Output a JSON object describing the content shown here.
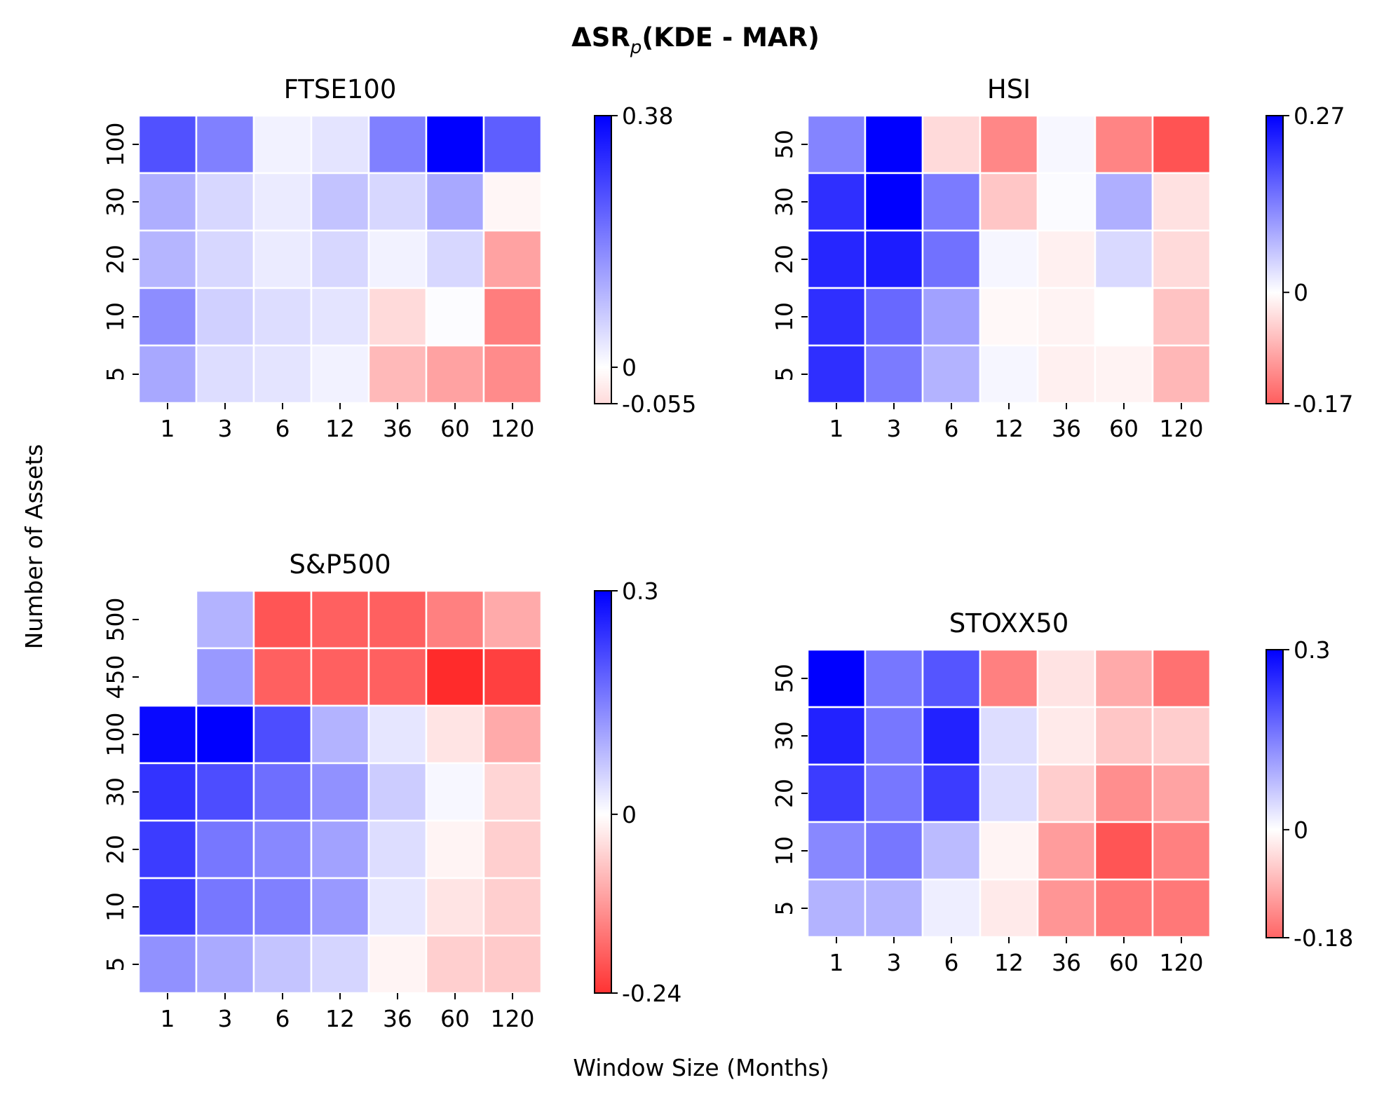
{
  "figure": {
    "title": "ΔSR",
    "title_sub": "p",
    "title_rest": "(KDE - MAR)",
    "xlabel": "Window Size (Months)",
    "ylabel": "Number of Assets"
  },
  "colors": {
    "positive": "#0000ff",
    "zero": "#ffffff",
    "negative": "#ff0000",
    "missing": "#ffffff"
  },
  "chart_data": [
    {
      "type": "heatmap",
      "title": "FTSE100",
      "x_categories": [
        "1",
        "3",
        "6",
        "12",
        "36",
        "60",
        "120"
      ],
      "y_categories": [
        "100",
        "30",
        "20",
        "10",
        "5"
      ],
      "values": [
        [
          0.26,
          0.19,
          0.02,
          0.04,
          0.19,
          0.38,
          0.24
        ],
        [
          0.12,
          0.06,
          0.03,
          0.09,
          0.06,
          0.13,
          -0.002
        ],
        [
          0.11,
          0.06,
          0.03,
          0.06,
          0.02,
          0.06,
          -0.02
        ],
        [
          0.17,
          0.07,
          0.05,
          0.04,
          -0.008,
          0.004,
          -0.028
        ],
        [
          0.13,
          0.05,
          0.04,
          0.02,
          -0.015,
          -0.02,
          -0.025
        ]
      ],
      "colorbar": {
        "vmin": -0.055,
        "vmax": 0.38,
        "ticks": [
          0.38,
          0,
          -0.055
        ],
        "tick_labels": [
          "0.38",
          "0",
          "-0.055"
        ]
      }
    },
    {
      "type": "heatmap",
      "title": "HSI",
      "x_categories": [
        "1",
        "3",
        "6",
        "12",
        "36",
        "60",
        "120"
      ],
      "y_categories": [
        "50",
        "30",
        "20",
        "10",
        "5"
      ],
      "values": [
        [
          0.13,
          0.27,
          -0.025,
          -0.08,
          0.008,
          -0.082,
          -0.115
        ],
        [
          0.22,
          0.27,
          0.14,
          -0.038,
          0.004,
          0.085,
          -0.02
        ],
        [
          0.23,
          0.24,
          0.15,
          0.01,
          -0.01,
          0.04,
          -0.025
        ],
        [
          0.22,
          0.16,
          0.1,
          -0.005,
          -0.008,
          0.0,
          -0.04
        ],
        [
          0.22,
          0.14,
          0.08,
          0.01,
          -0.01,
          -0.008,
          -0.048
        ]
      ],
      "colorbar": {
        "vmin": -0.17,
        "vmax": 0.27,
        "ticks": [
          0.27,
          0,
          -0.17
        ],
        "tick_labels": [
          "0.27",
          "0",
          "-0.17"
        ]
      }
    },
    {
      "type": "heatmap",
      "title": "S&P500",
      "x_categories": [
        "1",
        "3",
        "6",
        "12",
        "36",
        "60",
        "120"
      ],
      "y_categories": [
        "500",
        "450",
        "100",
        "30",
        "20",
        "10",
        "5"
      ],
      "values": [
        [
          null,
          0.09,
          -0.16,
          -0.15,
          -0.15,
          -0.12,
          -0.08
        ],
        [
          null,
          0.12,
          -0.15,
          -0.15,
          -0.15,
          -0.2,
          -0.18
        ],
        [
          0.29,
          0.3,
          0.21,
          0.09,
          0.03,
          -0.025,
          -0.08
        ],
        [
          0.24,
          0.21,
          0.17,
          0.13,
          0.06,
          0.01,
          -0.04
        ],
        [
          0.23,
          0.16,
          0.14,
          0.11,
          0.04,
          -0.01,
          -0.045
        ],
        [
          0.23,
          0.16,
          0.15,
          0.12,
          0.03,
          -0.025,
          -0.045
        ],
        [
          0.13,
          0.1,
          0.07,
          0.05,
          -0.01,
          -0.045,
          -0.05
        ]
      ],
      "colorbar": {
        "vmin": -0.24,
        "vmax": 0.3,
        "ticks": [
          0.3,
          0,
          -0.24
        ],
        "tick_labels": [
          "0.3",
          "0",
          "-0.24"
        ]
      }
    },
    {
      "type": "heatmap",
      "title": "STOXX50",
      "x_categories": [
        "1",
        "3",
        "6",
        "12",
        "36",
        "60",
        "120"
      ],
      "y_categories": [
        "50",
        "30",
        "20",
        "10",
        "5"
      ],
      "values": [
        [
          0.3,
          0.16,
          0.2,
          -0.09,
          -0.02,
          -0.06,
          -0.1
        ],
        [
          0.26,
          0.16,
          0.26,
          0.04,
          -0.015,
          -0.04,
          -0.035
        ],
        [
          0.23,
          0.16,
          0.23,
          0.04,
          -0.035,
          -0.08,
          -0.065
        ],
        [
          0.14,
          0.16,
          0.08,
          -0.008,
          -0.07,
          -0.12,
          -0.09
        ],
        [
          0.09,
          0.09,
          0.02,
          -0.015,
          -0.075,
          -0.095,
          -0.095
        ]
      ],
      "colorbar": {
        "vmin": -0.18,
        "vmax": 0.3,
        "ticks": [
          0.3,
          0,
          -0.18
        ],
        "tick_labels": [
          "0.3",
          "0",
          "-0.18"
        ]
      }
    }
  ]
}
